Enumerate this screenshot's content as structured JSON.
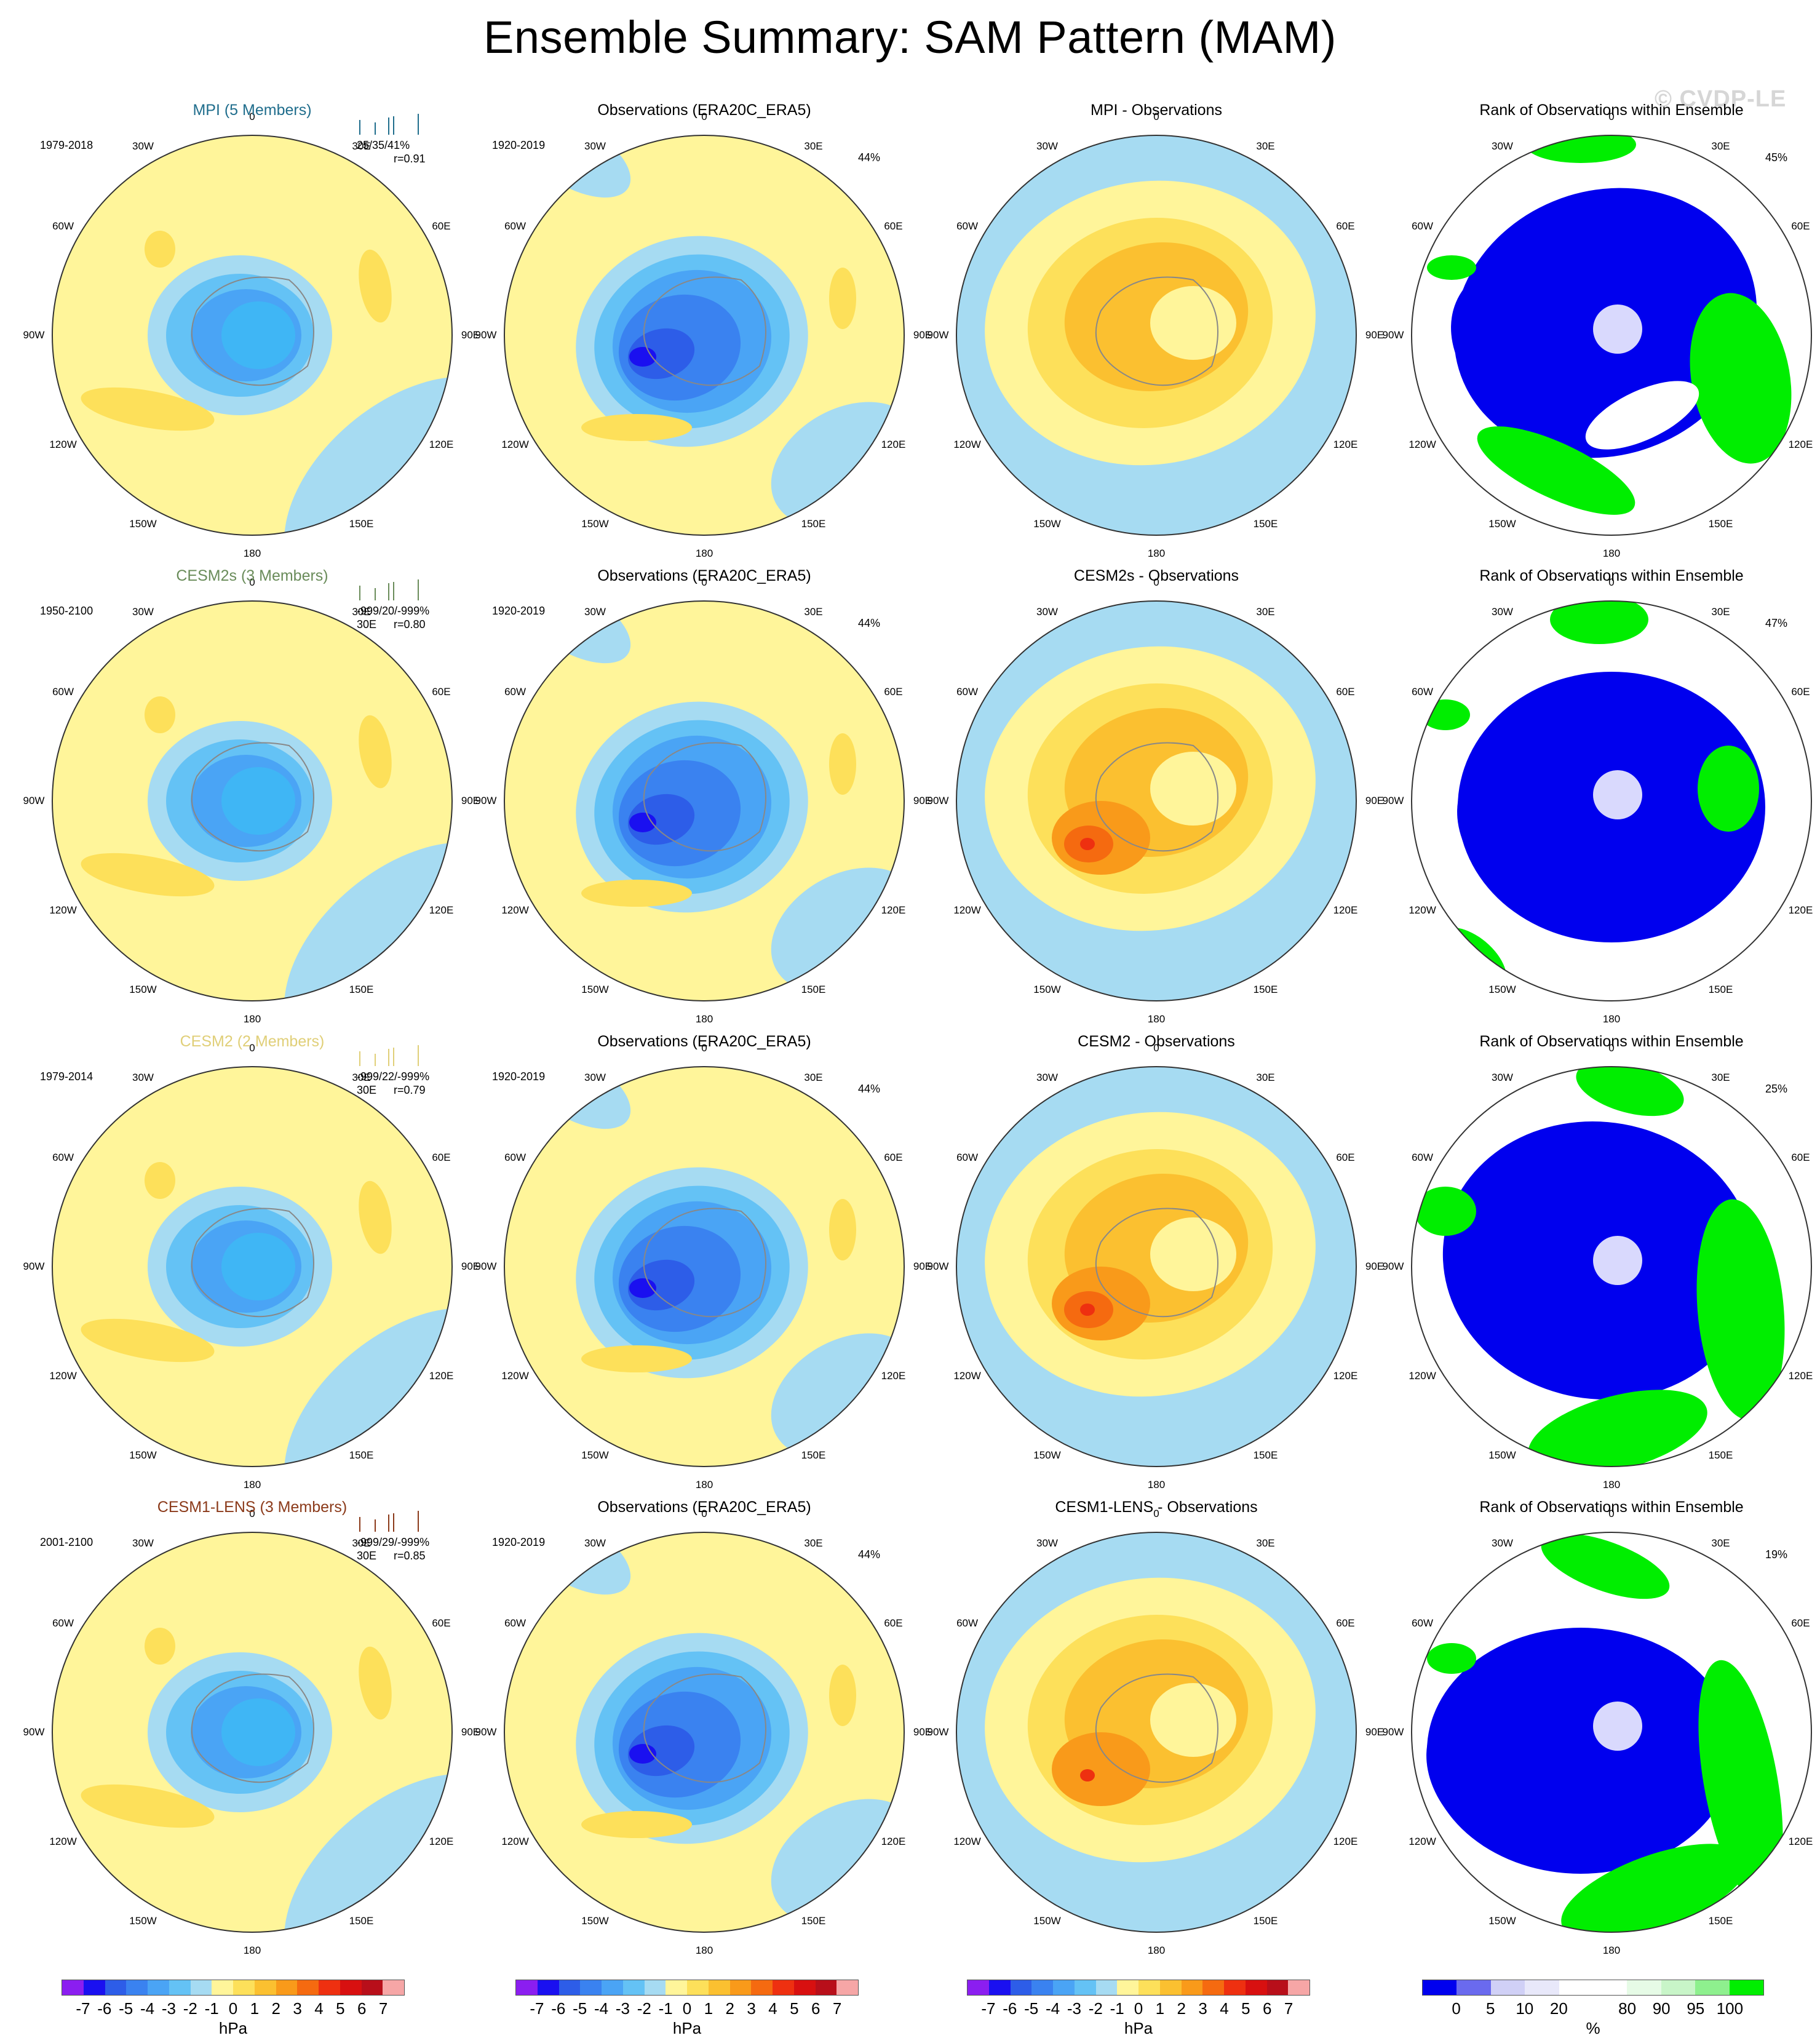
{
  "title": "Ensemble Summary: SAM Pattern (MAM)",
  "watermark": "© CVDP-LE",
  "grid_labels": [
    "0",
    "30E",
    "60E",
    "90E",
    "120E",
    "150E",
    "180",
    "150W",
    "120W",
    "90W",
    "60W",
    "30W"
  ],
  "colors": {
    "pattern_scale": [
      "#8b1ef0",
      "#1a10f0",
      "#2d5de8",
      "#3a82f0",
      "#4aa4f5",
      "#64c2f5",
      "#a6dbf2",
      "#fff59a",
      "#fde05a",
      "#fbc030",
      "#f99a1a",
      "#f56a10",
      "#ee3010",
      "#d81010",
      "#b80f1a",
      "#f6a6a6"
    ],
    "rank_scale": [
      "#0000ee",
      "#6a6aee",
      "#d0d0f6",
      "#e8e8fa",
      "#ffffff",
      "#ffffff",
      "#e6fbe6",
      "#c8f5c8",
      "#8ef08e",
      "#00ee00"
    ],
    "map_bg": "#fff59a",
    "map_neg": "#a6dbf2",
    "rank_blue": "#0000ee",
    "rank_green": "#00ee00",
    "rank_pale": "#e6fbe6"
  },
  "rows": [
    {
      "model": {
        "title": "MPI (5 Members)",
        "title_color": "#1f6d8c",
        "period": "1979-2018",
        "stats": "25/35/41%",
        "corr": "r=0.91",
        "stat_prefix": ""
      },
      "obs": {
        "title": "Observations (ERA20C_ERA5)",
        "period": "1920-2019",
        "pct": "44%"
      },
      "diff": {
        "title": "MPI - Observations"
      },
      "rank": {
        "title": "Rank of Observations within Ensemble",
        "pct": "45%"
      }
    },
    {
      "model": {
        "title": "CESM2s (3 Members)",
        "title_color": "#6a8c5a",
        "period": "1950-2100",
        "stats": "-999/20/-999%",
        "corr": "r=0.80",
        "stat_prefix": "30E"
      },
      "obs": {
        "title": "Observations (ERA20C_ERA5)",
        "period": "1920-2019",
        "pct": "44%"
      },
      "diff": {
        "title": "CESM2s - Observations"
      },
      "rank": {
        "title": "Rank of Observations within Ensemble",
        "pct": "47%"
      }
    },
    {
      "model": {
        "title": "CESM2 (2 Members)",
        "title_color": "#e0cf78",
        "period": "1979-2014",
        "stats": "-999/22/-999%",
        "corr": "r=0.79",
        "stat_prefix": "30E"
      },
      "obs": {
        "title": "Observations (ERA20C_ERA5)",
        "period": "1920-2019",
        "pct": "44%"
      },
      "diff": {
        "title": "CESM2 - Observations"
      },
      "rank": {
        "title": "Rank of Observations within Ensemble",
        "pct": "25%"
      }
    },
    {
      "model": {
        "title": "CESM1-LENS (3 Members)",
        "title_color": "#8b3a1a",
        "period": "2001-2100",
        "stats": "-999/29/-999%",
        "corr": "r=0.85",
        "stat_prefix": "30E"
      },
      "obs": {
        "title": "Observations (ERA20C_ERA5)",
        "period": "1920-2019",
        "pct": "44%"
      },
      "diff": {
        "title": "CESM1-LENS - Observations"
      },
      "rank": {
        "title": "Rank of Observations within Ensemble",
        "pct": "19%"
      }
    }
  ],
  "colorbars": {
    "pattern_ticks": [
      "-7",
      "-6",
      "-5",
      "-4",
      "-3",
      "-2",
      "-1",
      "0",
      "1",
      "2",
      "3",
      "4",
      "5",
      "6",
      "7"
    ],
    "pattern_unit": "hPa",
    "rank_ticks": [
      "0",
      "5",
      "10",
      "20",
      "80",
      "90",
      "95",
      "100"
    ],
    "rank_unit": "%"
  }
}
